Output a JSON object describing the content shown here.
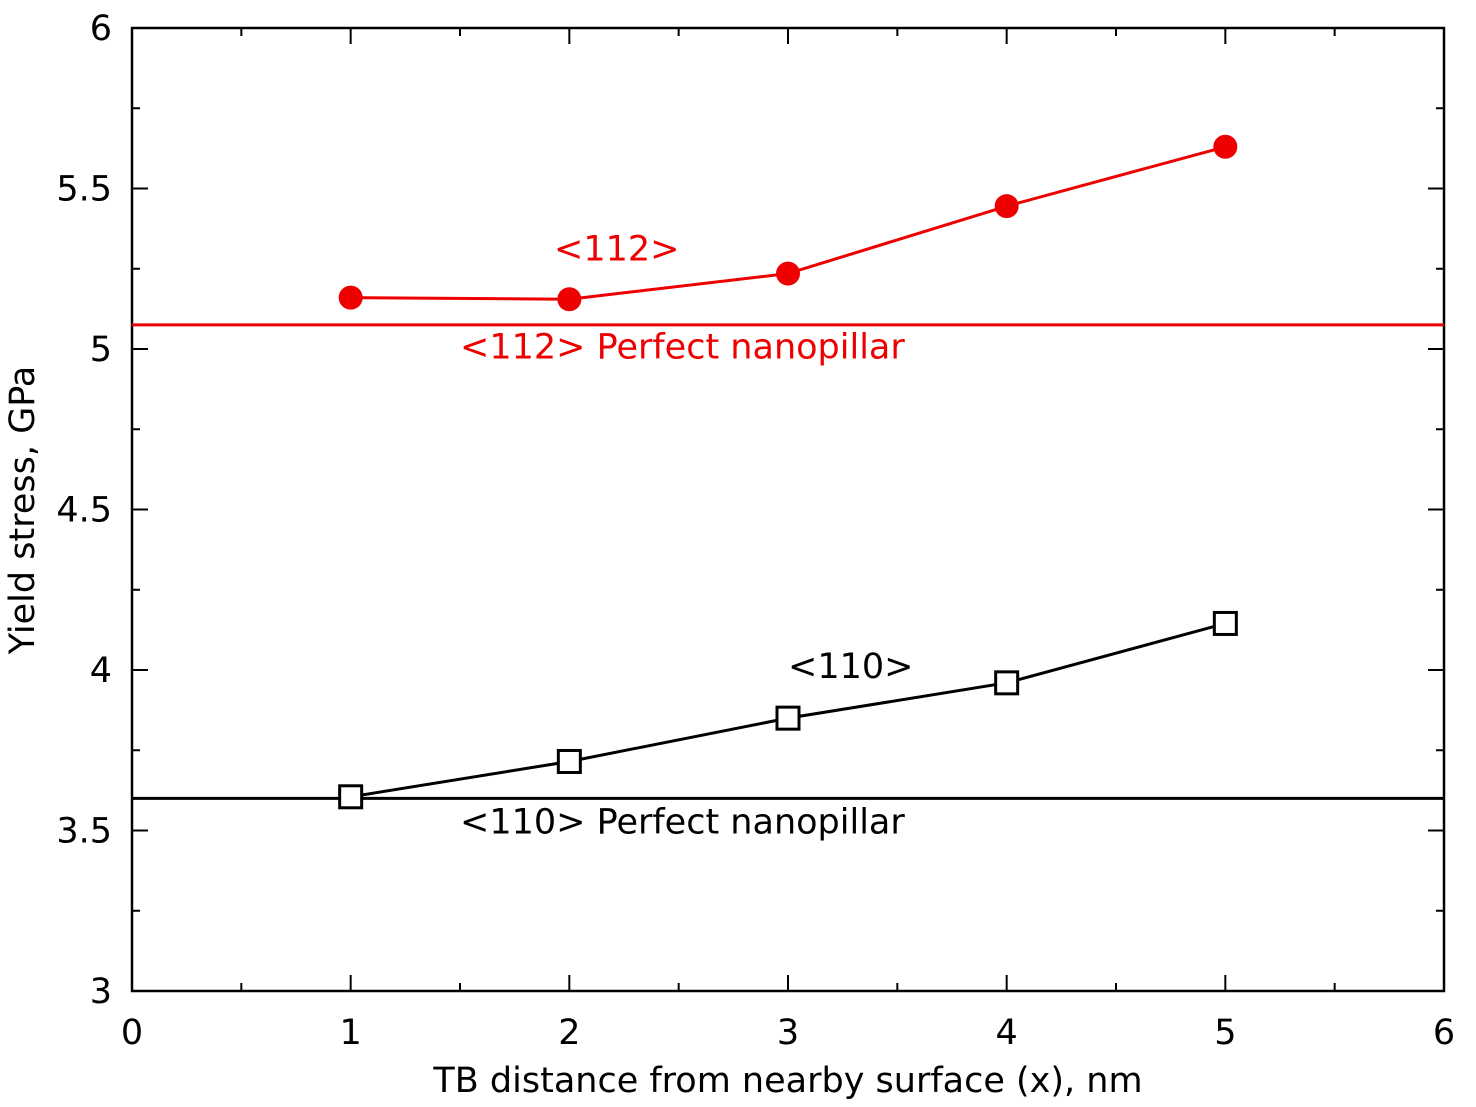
{
  "chart_data": {
    "type": "line",
    "title": "",
    "xlabel": "TB distance from nearby surface (x), nm",
    "ylabel": "Yield stress, GPa",
    "xlim": [
      0,
      6
    ],
    "ylim": [
      3,
      6
    ],
    "x_ticks": [
      "0",
      "1",
      "2",
      "3",
      "4",
      "5",
      "6"
    ],
    "x_tick_values": [
      0,
      1,
      2,
      3,
      4,
      5,
      6
    ],
    "y_ticks": [
      "3",
      "3.5",
      "4",
      "4.5",
      "5",
      "5.5",
      "6"
    ],
    "y_tick_values": [
      3,
      3.5,
      4,
      4.5,
      5,
      5.5,
      6
    ],
    "grid": false,
    "series": [
      {
        "name": "<112>",
        "color": "#ee0000",
        "marker": "filled-circle",
        "x": [
          1,
          2,
          3,
          4,
          5
        ],
        "y": [
          5.16,
          5.155,
          5.235,
          5.445,
          5.63
        ]
      },
      {
        "name": "<110>",
        "color": "#000000",
        "marker": "open-square",
        "x": [
          1,
          2,
          3,
          4,
          5
        ],
        "y": [
          3.605,
          3.715,
          3.85,
          3.96,
          4.145
        ]
      }
    ],
    "reference_lines": [
      {
        "name": "<112> Perfect nanopillar",
        "color": "#ee0000",
        "y": 5.075
      },
      {
        "name": "<110> Perfect nanopillar",
        "color": "#000000",
        "y": 3.6
      }
    ],
    "annotations": [
      {
        "text": "<112>",
        "x": 1.93,
        "y": 5.275,
        "color": "#ee0000"
      },
      {
        "text": "<112> Perfect nanopillar",
        "x": 1.5,
        "y": 4.97,
        "color": "#ee0000"
      },
      {
        "text": "<110>",
        "x": 3.0,
        "y": 3.975,
        "color": "#000000"
      },
      {
        "text": "<110> Perfect nanopillar",
        "x": 1.5,
        "y": 3.49,
        "color": "#000000"
      }
    ]
  }
}
